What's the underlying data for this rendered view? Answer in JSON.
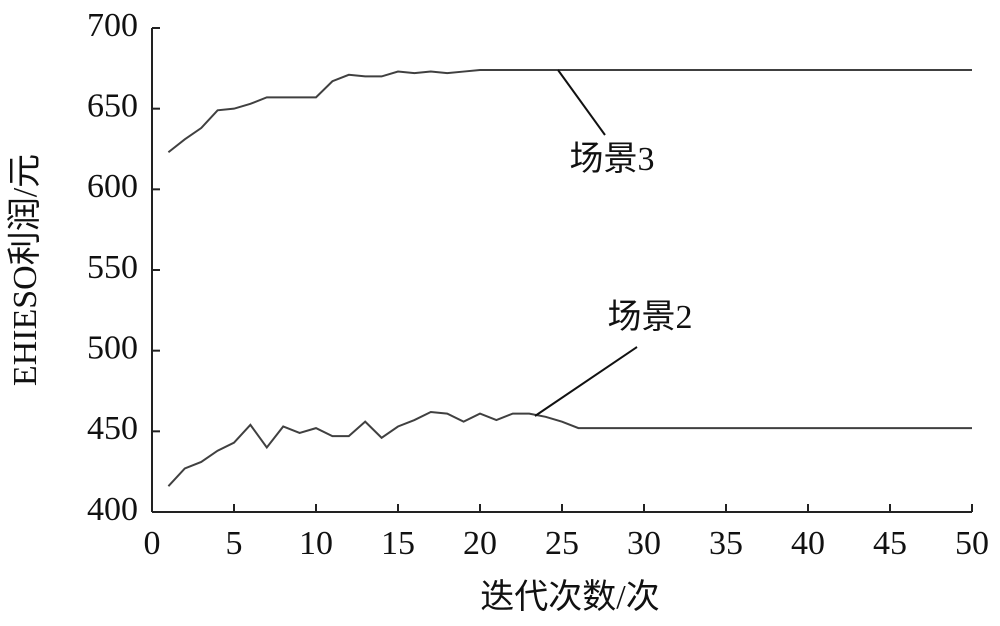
{
  "chart_data": {
    "type": "line",
    "xlabel": "迭代次数/次",
    "ylabel": "EHIESO利润/元",
    "x": [
      1,
      2,
      3,
      4,
      5,
      6,
      7,
      8,
      9,
      10,
      11,
      12,
      13,
      14,
      15,
      16,
      17,
      18,
      19,
      20,
      21,
      22,
      23,
      24,
      25,
      26,
      27,
      28,
      29,
      30,
      31,
      32,
      33,
      34,
      35,
      36,
      37,
      38,
      39,
      40,
      41,
      42,
      43,
      44,
      45,
      46,
      47,
      48,
      49,
      50
    ],
    "series": [
      {
        "name": "场景3",
        "color": "#404040",
        "values": [
          623,
          631,
          638,
          649,
          650,
          653,
          657,
          657,
          657,
          657,
          667,
          671,
          670,
          670,
          673,
          672,
          673,
          672,
          673,
          674,
          674,
          674,
          674,
          674,
          674,
          674,
          674,
          674,
          674,
          674,
          674,
          674,
          674,
          674,
          674,
          674,
          674,
          674,
          674,
          674,
          674,
          674,
          674,
          674,
          674,
          674,
          674,
          674,
          674,
          674
        ]
      },
      {
        "name": "场景2",
        "color": "#404040",
        "values": [
          416,
          427,
          431,
          438,
          443,
          454,
          440,
          453,
          449,
          452,
          447,
          447,
          456,
          446,
          453,
          457,
          462,
          461,
          456,
          461,
          457,
          461,
          461,
          459,
          456,
          452,
          452,
          452,
          452,
          452,
          452,
          452,
          452,
          452,
          452,
          452,
          452,
          452,
          452,
          452,
          452,
          452,
          452,
          452,
          452,
          452,
          452,
          452,
          452,
          452
        ]
      }
    ],
    "xlim": [
      0,
      50
    ],
    "xticks": [
      0,
      5,
      10,
      15,
      20,
      25,
      30,
      35,
      40,
      45,
      50
    ],
    "ylim": [
      400,
      700
    ],
    "yticks": [
      400,
      450,
      500,
      550,
      600,
      650,
      700
    ]
  }
}
